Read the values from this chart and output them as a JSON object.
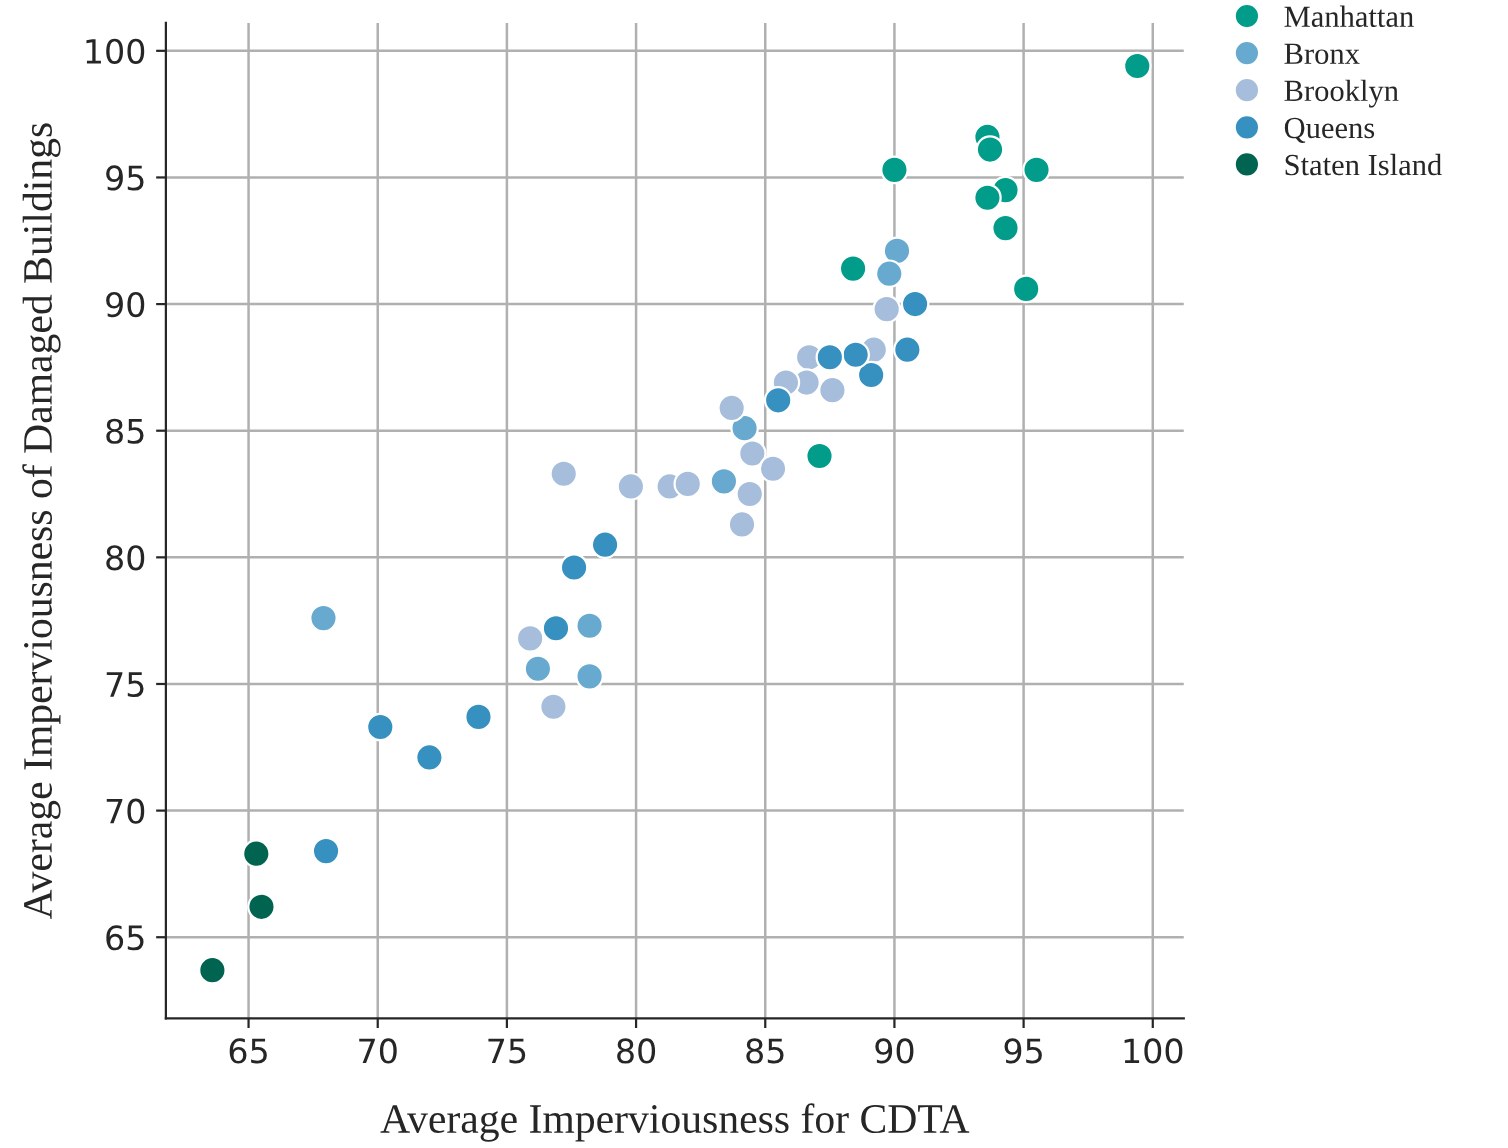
{
  "chart_data": {
    "type": "scatter",
    "xlabel": "Average Imperviousness for CDTA",
    "ylabel": "Average Imperviousness of Damaged Buildings",
    "xlim": [
      61.8,
      101.2
    ],
    "ylim": [
      61.8,
      101.1
    ],
    "xticks": [
      65,
      70,
      75,
      80,
      85,
      90,
      95,
      100
    ],
    "yticks": [
      65,
      70,
      75,
      80,
      85,
      90,
      95,
      100
    ],
    "grid": true,
    "legend": "top right",
    "marker": "circle",
    "series": [
      {
        "name": "Manhattan",
        "color": "#029c8a",
        "x": [
          99.4,
          93.6,
          93.7,
          90.0,
          95.5,
          94.3,
          93.6,
          94.3,
          95.1,
          88.4,
          87.1
        ],
        "values": [
          99.4,
          96.6,
          96.1,
          95.3,
          95.3,
          94.5,
          94.2,
          93.0,
          90.6,
          91.4,
          84.0
        ]
      },
      {
        "name": "Bronx",
        "color": "#67a9cf",
        "x": [
          90.1,
          89.8,
          89.3,
          89.2,
          84.2,
          83.4,
          67.9,
          76.2,
          78.2,
          78.2
        ],
        "values": [
          92.1,
          91.2,
          null,
          null,
          85.1,
          83.0,
          77.6,
          75.6,
          77.3,
          75.3
        ]
      },
      {
        "name": "Brooklyn",
        "color": "#a6bddb",
        "x": [
          89.7,
          86.7,
          87.3,
          87.9,
          89.2,
          86.6,
          85.8,
          87.6,
          83.7,
          84.5,
          85.3,
          84.4,
          84.1,
          77.2,
          79.8,
          81.3,
          82.0,
          79.2,
          75.9,
          76.8
        ],
        "values": [
          89.8,
          87.9,
          null,
          null,
          88.2,
          86.9,
          86.9,
          86.6,
          85.9,
          84.1,
          83.5,
          82.5,
          81.3,
          83.3,
          82.8,
          82.8,
          82.9,
          null,
          76.8,
          74.1
        ]
      },
      {
        "name": "Queens",
        "color": "#3690c0",
        "x": [
          90.8,
          90.5,
          89.1,
          88.5,
          87.5,
          85.5,
          78.8,
          77.6,
          76.9,
          73.9,
          70.1,
          72.0,
          68.0
        ],
        "values": [
          90.0,
          88.2,
          87.2,
          88.0,
          87.9,
          86.2,
          80.5,
          79.6,
          77.2,
          73.7,
          73.3,
          72.1,
          68.4
        ]
      },
      {
        "name": "Staten Island",
        "color": "#016450",
        "x": [
          65.3,
          65.5,
          63.6
        ],
        "values": [
          68.3,
          66.2,
          63.7
        ]
      }
    ]
  }
}
